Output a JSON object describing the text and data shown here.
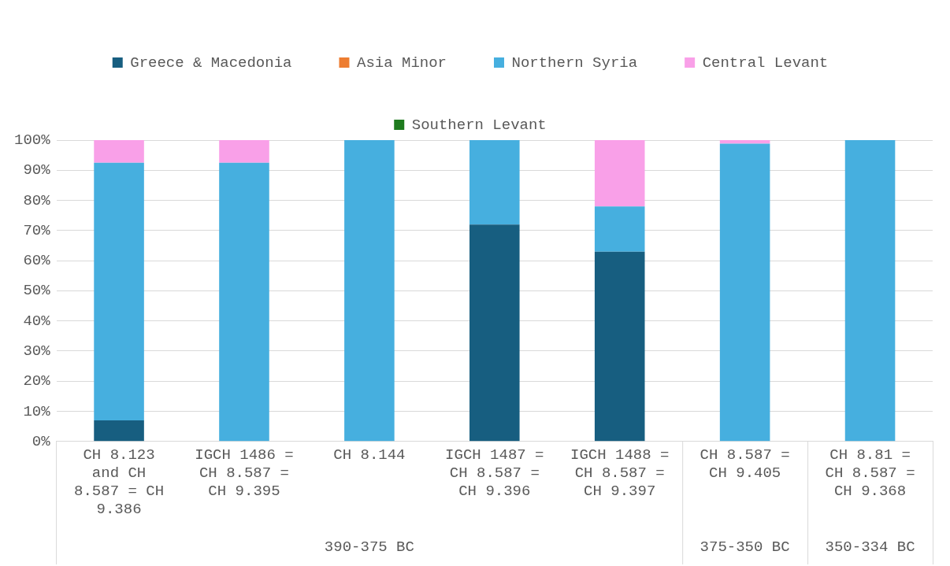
{
  "chart_data": {
    "type": "bar",
    "stacked": true,
    "categories": [
      "CH 8.123 and CH 8.587 = CH 9.386",
      "IGCH 1486 = CH 8.587 = CH 9.395",
      "CH 8.144",
      "IGCH 1487 = CH 8.587 = CH 9.396",
      "IGCH 1488 = CH 8.587 = CH 9.397",
      "CH 8.587 = CH 9.405",
      "CH 8.81 = CH 8.587 = CH 9.368"
    ],
    "series": [
      {
        "name": "Greece & Macedonia",
        "color": "#175e80",
        "values": [
          7,
          0,
          0,
          72,
          63,
          0,
          null
        ]
      },
      {
        "name": "Asia Minor",
        "color": "#ed7d31",
        "values": [
          0,
          0,
          0,
          0,
          0,
          0,
          0
        ]
      },
      {
        "name": "Northern Syria",
        "color": "#46afdf",
        "values": [
          85.5,
          92.5,
          100,
          28,
          15,
          98.8,
          100
        ]
      },
      {
        "name": "Central Levant",
        "color": "#f9a0e8",
        "values": [
          7.5,
          7.5,
          0,
          0,
          22,
          1.2,
          0
        ]
      },
      {
        "name": "Southern Levant",
        "color": "#1e7b1e",
        "values": [
          0,
          0,
          0,
          0,
          0,
          0,
          0
        ]
      }
    ],
    "ylim": [
      0,
      100
    ],
    "yticks": [
      {
        "value": 0,
        "label": "0%"
      },
      {
        "value": 10,
        "label": "10%"
      },
      {
        "value": 20,
        "label": "20%"
      },
      {
        "value": 30,
        "label": "30%"
      },
      {
        "value": 40,
        "label": "40%"
      },
      {
        "value": 50,
        "label": "50%"
      },
      {
        "value": 60,
        "label": "60%"
      },
      {
        "value": 70,
        "label": "70%"
      },
      {
        "value": 80,
        "label": "80%"
      },
      {
        "value": 90,
        "label": "90%"
      },
      {
        "value": 100,
        "label": "100%"
      }
    ],
    "grid": "y",
    "legend": "top",
    "annotations": [
      "390-375 BC",
      "375-350 BC",
      "350-334 BC"
    ]
  }
}
